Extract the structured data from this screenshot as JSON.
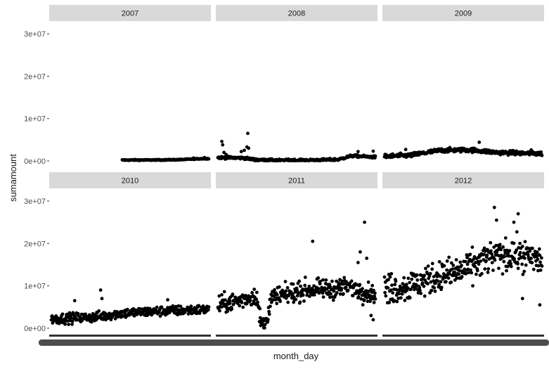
{
  "chart_data": {
    "type": "scatter",
    "xlabel": "month_day",
    "ylabel": "sumamount",
    "y_ticks": [
      "0e+00",
      "1e+07",
      "2e+07",
      "3e+07"
    ],
    "y_tick_values": [
      0,
      10000000,
      20000000,
      30000000
    ],
    "ylim": [
      -1500000,
      33000000
    ],
    "x_domain_days": [
      1,
      365
    ],
    "facet_layout": "2 rows x 3 columns",
    "background": "white",
    "grid": false,
    "point_color": "#000000",
    "strip_color": "#d9d9d9",
    "panels": [
      {
        "label": "2007",
        "x_day_range": [
          165,
          365
        ],
        "trend_anchors": [
          [
            165,
            200000
          ],
          [
            250,
            220000
          ],
          [
            300,
            300000
          ],
          [
            340,
            500000
          ],
          [
            365,
            550000
          ]
        ],
        "jitter": 120000,
        "outliers": [
          [
            355,
            800000
          ],
          [
            330,
            700000
          ]
        ]
      },
      {
        "label": "2008",
        "x_day_range": [
          1,
          365
        ],
        "trend_anchors": [
          [
            1,
            800000
          ],
          [
            60,
            700000
          ],
          [
            90,
            250000
          ],
          [
            150,
            150000
          ],
          [
            230,
            200000
          ],
          [
            280,
            350000
          ],
          [
            310,
            1200000
          ],
          [
            365,
            900000
          ]
        ],
        "jitter": 300000,
        "outliers": [
          [
            10,
            4600000
          ],
          [
            12,
            3800000
          ],
          [
            15,
            2000000
          ],
          [
            20,
            1500000
          ],
          [
            55,
            2200000
          ],
          [
            70,
            6500000
          ],
          [
            68,
            3300000
          ],
          [
            72,
            3000000
          ],
          [
            62,
            2500000
          ],
          [
            325,
            2200000
          ],
          [
            360,
            2300000
          ]
        ]
      },
      {
        "label": "2009",
        "x_day_range": [
          1,
          365
        ],
        "trend_anchors": [
          [
            1,
            1100000
          ],
          [
            60,
            1300000
          ],
          [
            130,
            2500000
          ],
          [
            200,
            2600000
          ],
          [
            260,
            2000000
          ],
          [
            365,
            1700000
          ]
        ],
        "jitter": 550000,
        "outliers": [
          [
            220,
            4400000
          ],
          [
            50,
            2700000
          ],
          [
            340,
            2600000
          ]
        ]
      },
      {
        "label": "2010",
        "x_day_range": [
          1,
          365
        ],
        "trend_anchors": [
          [
            1,
            2200000
          ],
          [
            100,
            2600000
          ],
          [
            160,
            3500000
          ],
          [
            250,
            4000000
          ],
          [
            365,
            4400000
          ]
        ],
        "jitter": 1300000,
        "outliers": [
          [
            55,
            6500000
          ],
          [
            115,
            9000000
          ],
          [
            118,
            7000000
          ],
          [
            270,
            6700000
          ]
        ]
      },
      {
        "label": "2011",
        "x_day_range": [
          1,
          365
        ],
        "trend_anchors": [
          [
            1,
            5500000
          ],
          [
            50,
            6500000
          ],
          [
            90,
            7800000
          ],
          [
            100,
            1200000
          ],
          [
            110,
            1000000
          ],
          [
            125,
            7000000
          ],
          [
            200,
            9000000
          ],
          [
            260,
            9200000
          ],
          [
            300,
            9800000
          ],
          [
            365,
            8000000
          ]
        ],
        "jitter": 2400000,
        "outliers": [
          [
            220,
            20500000
          ],
          [
            340,
            25000000
          ],
          [
            330,
            18000000
          ],
          [
            325,
            15500000
          ],
          [
            345,
            16500000
          ],
          [
            360,
            2000000
          ],
          [
            355,
            3000000
          ]
        ]
      },
      {
        "label": "2012",
        "x_day_range": [
          1,
          365
        ],
        "trend_anchors": [
          [
            1,
            9000000
          ],
          [
            60,
            10000000
          ],
          [
            120,
            12000000
          ],
          [
            180,
            13500000
          ],
          [
            240,
            16500000
          ],
          [
            300,
            17500000
          ],
          [
            365,
            16000000
          ]
        ],
        "jitter": 4000000,
        "outliers": [
          [
            255,
            28500000
          ],
          [
            310,
            27000000
          ],
          [
            300,
            25000000
          ],
          [
            260,
            25500000
          ],
          [
            320,
            7000000
          ],
          [
            360,
            5500000
          ]
        ]
      }
    ]
  }
}
